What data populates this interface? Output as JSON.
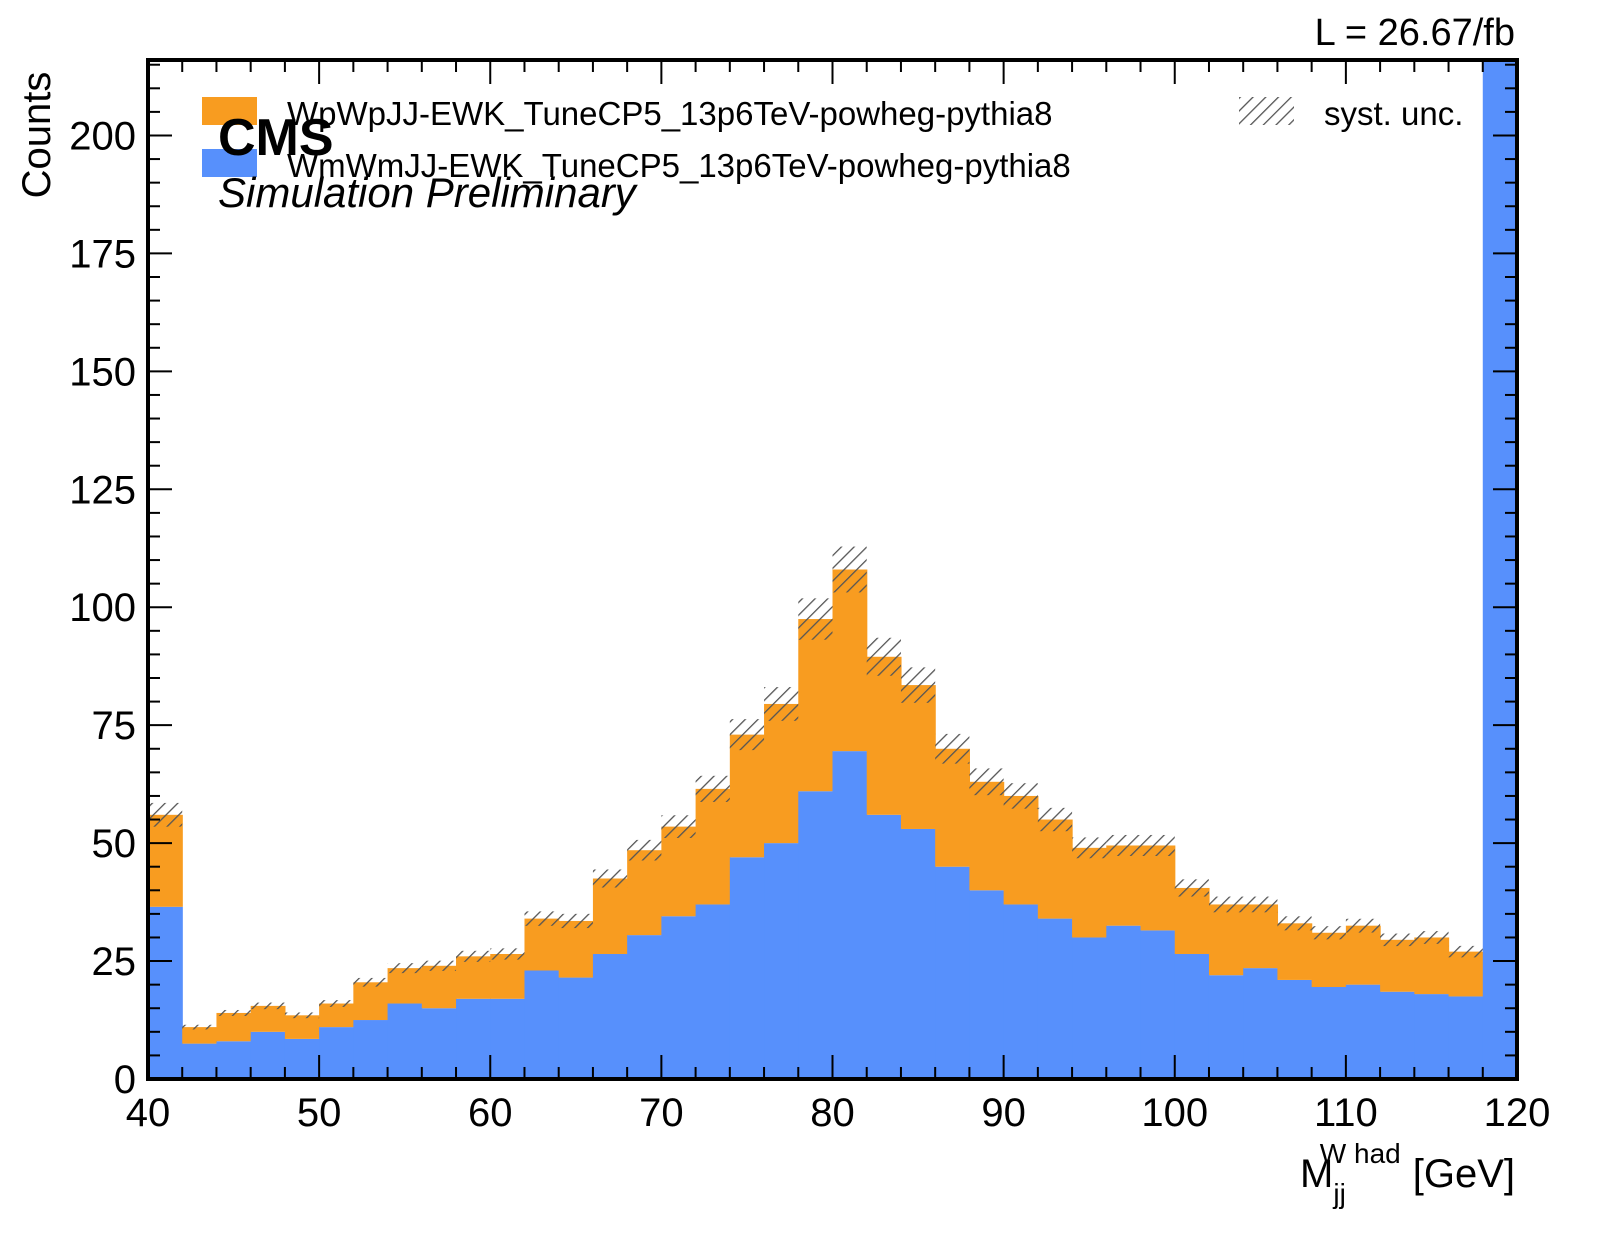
{
  "chart_data": {
    "type": "bar",
    "subtype": "stacked-histogram",
    "x_edges": [
      40,
      42,
      44,
      46,
      48,
      50,
      52,
      54,
      56,
      58,
      60,
      62,
      64,
      66,
      68,
      70,
      72,
      74,
      76,
      78,
      80,
      82,
      84,
      86,
      88,
      90,
      92,
      94,
      96,
      98,
      100,
      102,
      104,
      106,
      108,
      110,
      112,
      114,
      116,
      118,
      120
    ],
    "series": [
      {
        "name": "WmWmJJ-EWK_TuneCP5_13p6TeV-powheg-pythia8",
        "color": "#5790fc",
        "values": [
          36.5,
          7.5,
          8,
          10,
          8.5,
          11,
          12.5,
          16,
          15,
          17,
          17,
          23,
          21.5,
          26.5,
          30.5,
          34.5,
          37,
          47,
          50,
          61,
          69.5,
          56,
          53,
          45,
          40,
          37,
          34,
          30,
          32.5,
          31.5,
          26.5,
          22,
          23.5,
          21,
          19.5,
          20,
          18.5,
          18,
          17.5,
          216
        ]
      },
      {
        "name": "WpWpJJ-EWK_TuneCP5_13p6TeV-powheg-pythia8",
        "color": "#f89c20",
        "values": [
          19.5,
          3.5,
          6,
          5.5,
          5,
          5,
          8,
          7.5,
          9,
          9,
          9.5,
          11,
          12,
          16,
          18,
          19,
          24.5,
          26,
          29.5,
          36.5,
          38.5,
          33.5,
          30.5,
          25,
          23,
          23,
          21,
          19,
          17,
          18,
          14,
          15,
          13.5,
          12,
          11.5,
          12.5,
          11,
          12,
          9.5,
          0
        ]
      }
    ],
    "syst_unc_frac": 0.045,
    "xlim": [
      40,
      120
    ],
    "ylim": [
      0,
      216
    ],
    "xticks": [
      40,
      50,
      60,
      70,
      80,
      90,
      100,
      110,
      120
    ],
    "yticks": [
      0,
      25,
      50,
      75,
      100,
      125,
      150,
      175,
      200
    ],
    "ylabel": "Counts",
    "xlabel": {
      "main": "M",
      "subscript": "jj",
      "superscript": "W had",
      "unit": "[GeV]"
    },
    "legend": {
      "placement": "top",
      "syst_label": "syst. unc."
    },
    "experiment_label": "CMS",
    "experiment_sublabel": "Simulation Preliminary",
    "lumi_label": "L = 26.67/fb",
    "grid": false
  }
}
